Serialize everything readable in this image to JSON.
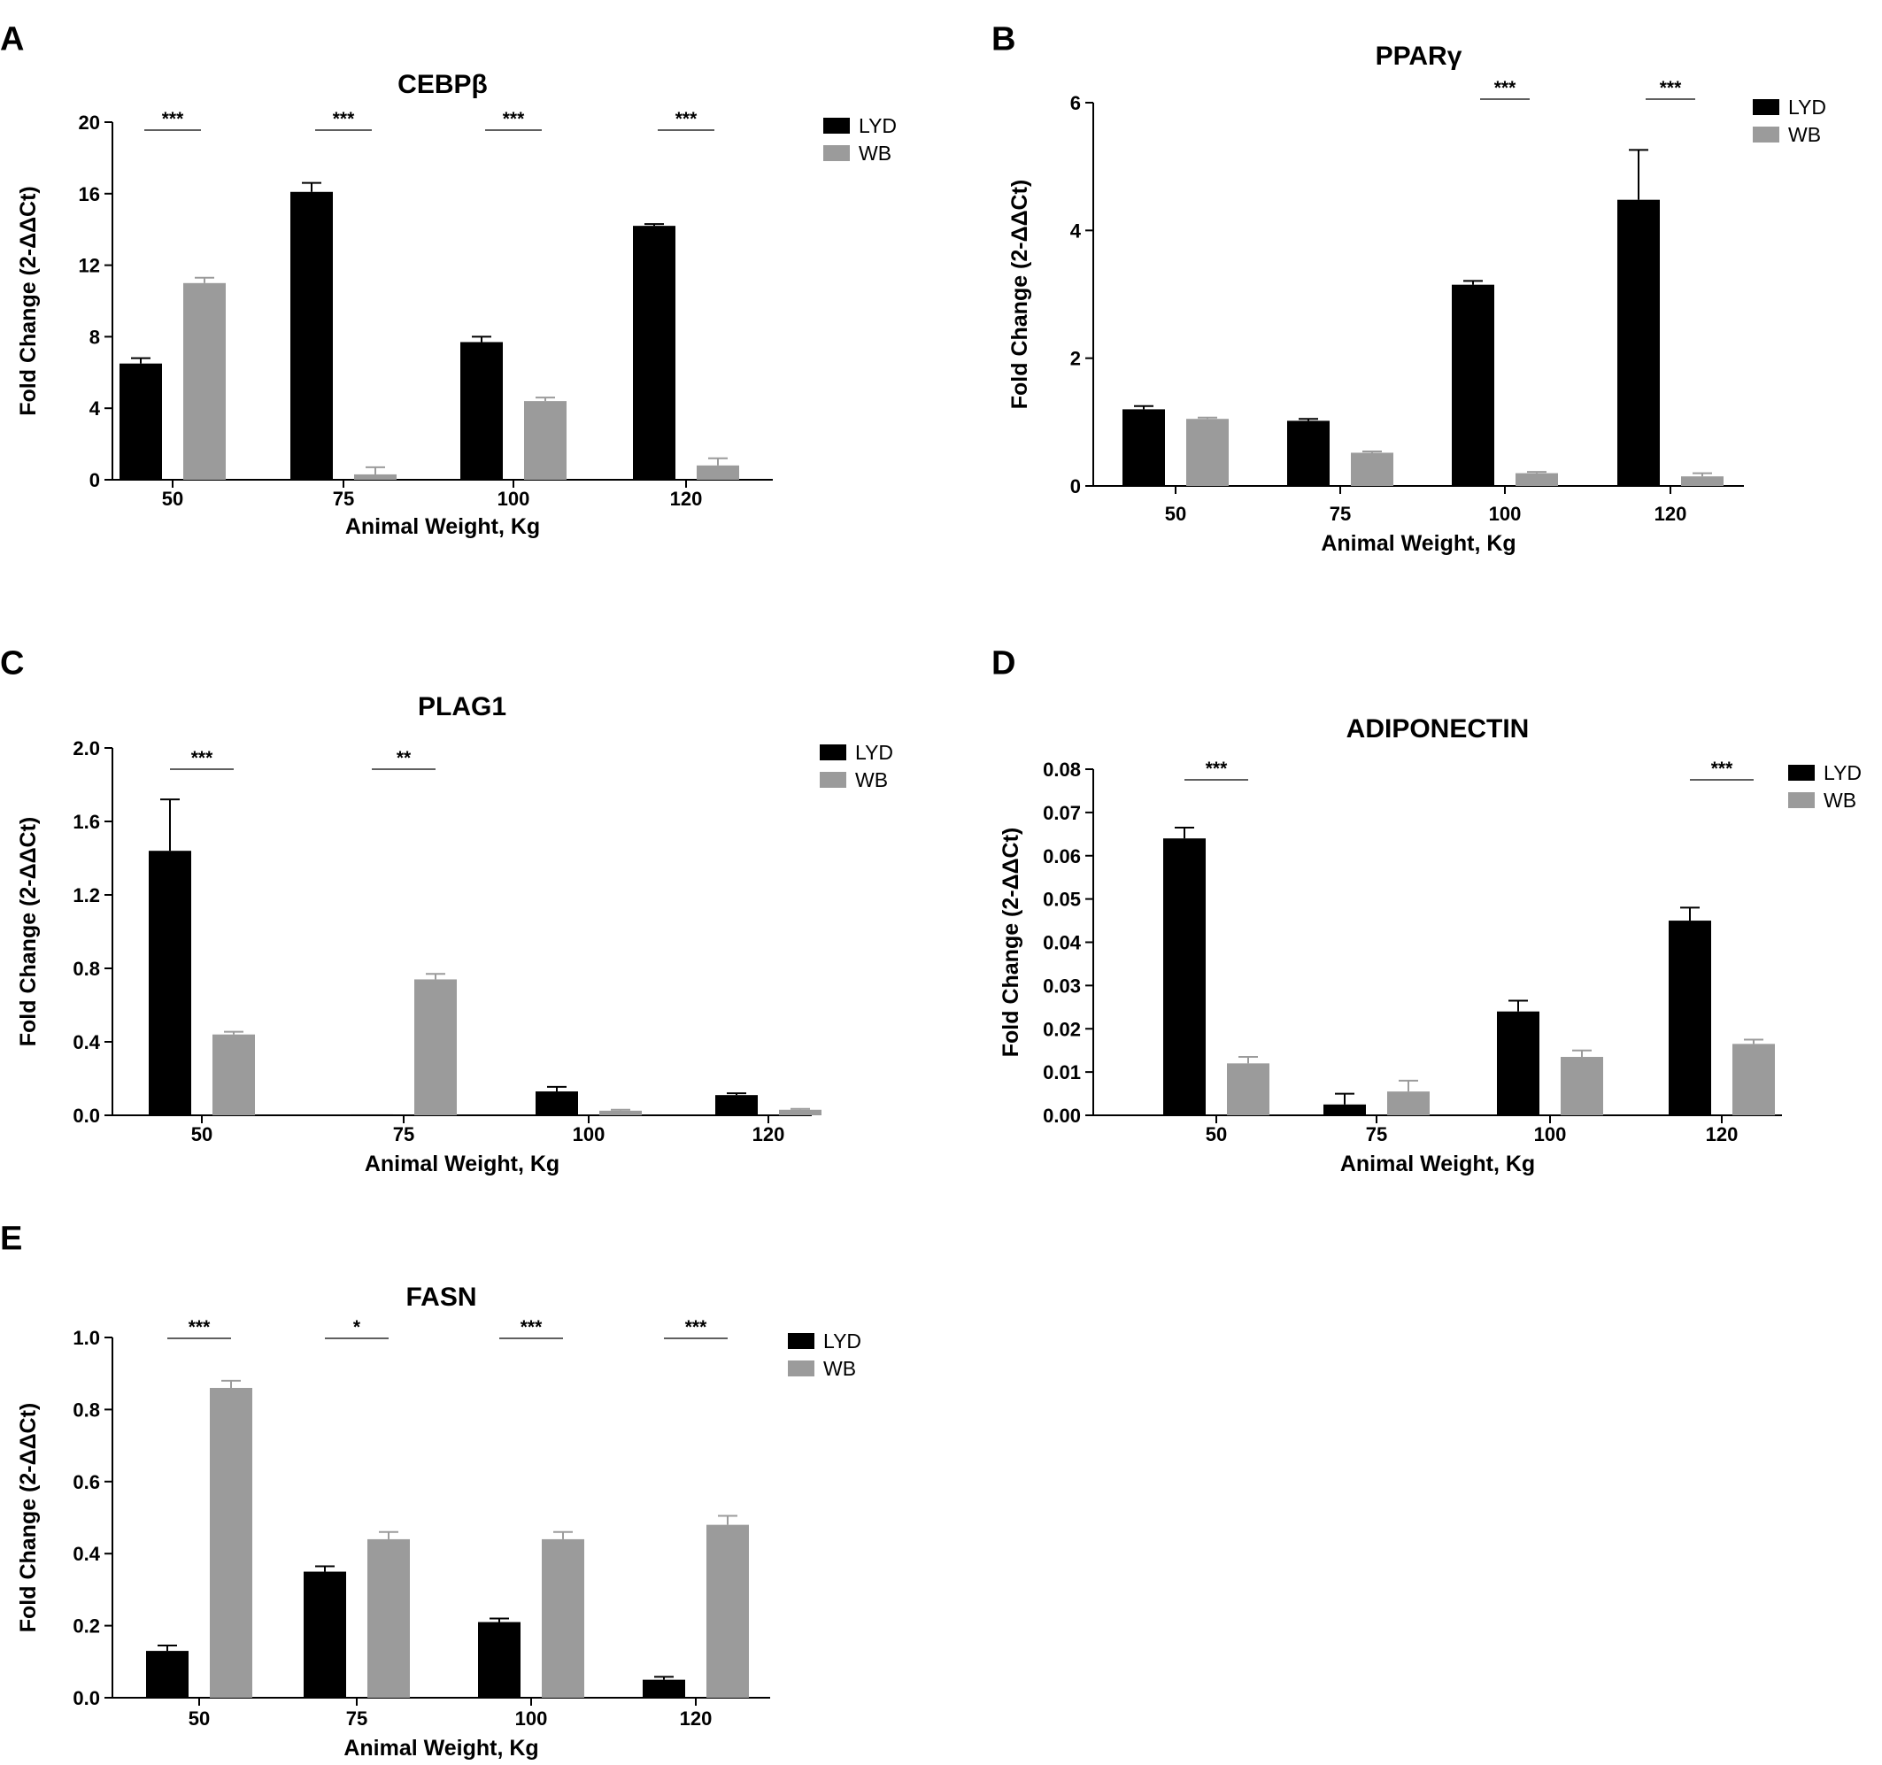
{
  "colors": {
    "LYD": "#000000",
    "WB": "#9b9b9b"
  },
  "chart_data": [
    {
      "panel": "A",
      "type": "bar",
      "title": "CEBPβ",
      "xlabel": "Animal  Weight, Kg",
      "ylabel": "Fold Change (2-ΔΔCt)",
      "categories": [
        "50",
        "75",
        "100",
        "120"
      ],
      "ylim": [
        0,
        20
      ],
      "yticks": [
        "0",
        "4",
        "8",
        "12",
        "16",
        "20"
      ],
      "series": [
        {
          "name": "LYD",
          "values": [
            6.5,
            16.1,
            7.7,
            14.2
          ],
          "errors": [
            0.3,
            0.5,
            0.3,
            0.1
          ]
        },
        {
          "name": "WB",
          "values": [
            11.0,
            0.3,
            4.4,
            0.8
          ],
          "errors": [
            0.3,
            0.4,
            0.2,
            0.4
          ]
        }
      ],
      "significance": [
        "***",
        "***",
        "***",
        "***"
      ],
      "legend": "top-right"
    },
    {
      "panel": "B",
      "type": "bar",
      "title": "PPARγ",
      "xlabel": "Animal  Weight, Kg",
      "ylabel": "Fold Change (2-ΔΔCt)",
      "categories": [
        "50",
        "75",
        "100",
        "120"
      ],
      "ylim": [
        0,
        6
      ],
      "yticks": [
        "0",
        "2",
        "4",
        "6"
      ],
      "series": [
        {
          "name": "LYD",
          "values": [
            1.2,
            1.02,
            3.15,
            4.48
          ],
          "errors": [
            0.05,
            0.03,
            0.06,
            0.78
          ]
        },
        {
          "name": "WB",
          "values": [
            1.05,
            0.52,
            0.2,
            0.15
          ],
          "errors": [
            0.02,
            0.02,
            0.02,
            0.05
          ]
        }
      ],
      "significance": [
        "",
        "",
        "***",
        "***"
      ],
      "legend": "top-right"
    },
    {
      "panel": "C",
      "type": "bar",
      "title": "PLAG1",
      "xlabel": "Animal  Weight, Kg",
      "ylabel": "Fold Change (2-ΔΔCt)",
      "categories": [
        "50",
        "75",
        "100",
        "120"
      ],
      "ylim": [
        0,
        2.0
      ],
      "yticks": [
        "0.0",
        "0.4",
        "0.8",
        "1.2",
        "1.6",
        "2.0"
      ],
      "series": [
        {
          "name": "LYD",
          "values": [
            1.44,
            0.005,
            0.13,
            0.11
          ],
          "errors": [
            0.28,
            0.0,
            0.025,
            0.01
          ]
        },
        {
          "name": "WB",
          "values": [
            0.44,
            0.74,
            0.025,
            0.03
          ],
          "errors": [
            0.015,
            0.03,
            0.005,
            0.005
          ]
        }
      ],
      "significance": [
        "***",
        "**",
        "",
        ""
      ],
      "legend": "top-right"
    },
    {
      "panel": "D",
      "type": "bar",
      "title": "ADIPONECTIN",
      "xlabel": "Animal  Weight, Kg",
      "ylabel": "Fold Change (2-ΔΔCt)",
      "categories": [
        "50",
        "75",
        "100",
        "120"
      ],
      "ylim": [
        0,
        0.08
      ],
      "yticks": [
        "0.00",
        "0.01",
        "0.02",
        "0.03",
        "0.04",
        "0.05",
        "0.06",
        "0.07",
        "0.08"
      ],
      "series": [
        {
          "name": "LYD",
          "values": [
            0.064,
            0.0025,
            0.024,
            0.045
          ],
          "errors": [
            0.0025,
            0.0025,
            0.0025,
            0.003
          ]
        },
        {
          "name": "WB",
          "values": [
            0.012,
            0.0055,
            0.0135,
            0.0165
          ],
          "errors": [
            0.0015,
            0.0025,
            0.0015,
            0.001
          ]
        }
      ],
      "significance": [
        "***",
        "",
        "",
        "***"
      ],
      "legend": "top-right"
    },
    {
      "panel": "E",
      "type": "bar",
      "title": "FASN",
      "xlabel": "Animal  Weight, Kg",
      "ylabel": "Fold Change (2-ΔΔCt)",
      "categories": [
        "50",
        "75",
        "100",
        "120"
      ],
      "ylim": [
        0,
        1.0
      ],
      "yticks": [
        "0.0",
        "0.2",
        "0.4",
        "0.6",
        "0.8",
        "1.0"
      ],
      "series": [
        {
          "name": "LYD",
          "values": [
            0.13,
            0.35,
            0.21,
            0.05
          ],
          "errors": [
            0.015,
            0.015,
            0.01,
            0.008
          ]
        },
        {
          "name": "WB",
          "values": [
            0.86,
            0.44,
            0.44,
            0.48
          ],
          "errors": [
            0.02,
            0.02,
            0.02,
            0.025
          ]
        }
      ],
      "significance": [
        "***",
        "*",
        "***",
        "***"
      ],
      "legend": "top-right"
    }
  ]
}
